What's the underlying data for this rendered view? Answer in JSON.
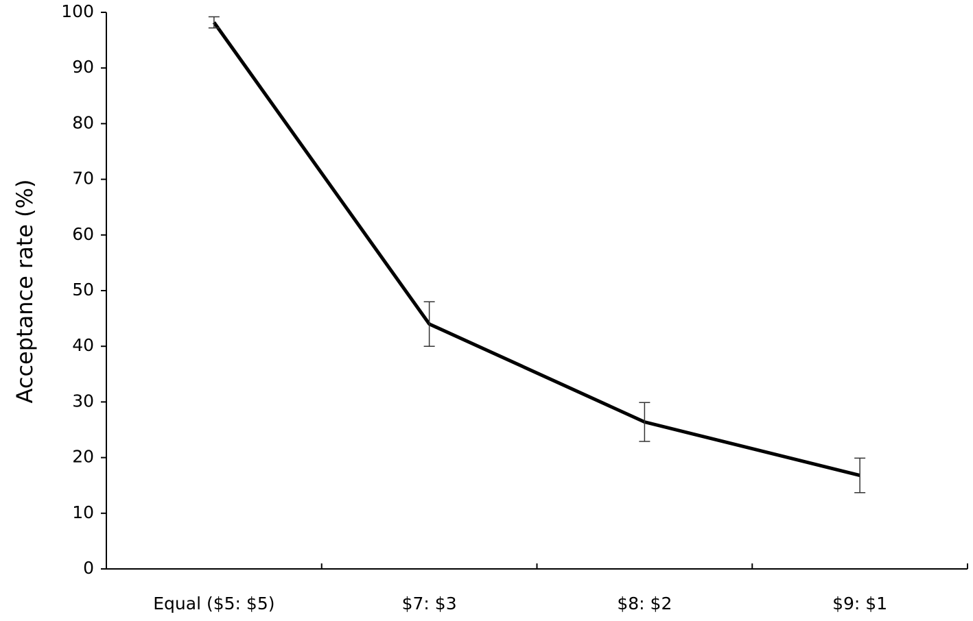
{
  "chart_data": {
    "type": "line",
    "ylabel": "Acceptance rate (%)",
    "categories": [
      "Equal ($5: $5)",
      "$7: $3",
      "$8: $2",
      "$9: $1"
    ],
    "values": [
      98.2,
      44.0,
      26.4,
      16.8
    ],
    "errors": [
      1.0,
      4.0,
      3.5,
      3.1
    ],
    "color": "#000000",
    "ylim": [
      0,
      100
    ],
    "yticks": [
      0,
      10,
      20,
      30,
      40,
      50,
      60,
      70,
      80,
      90,
      100
    ],
    "grid": false
  }
}
